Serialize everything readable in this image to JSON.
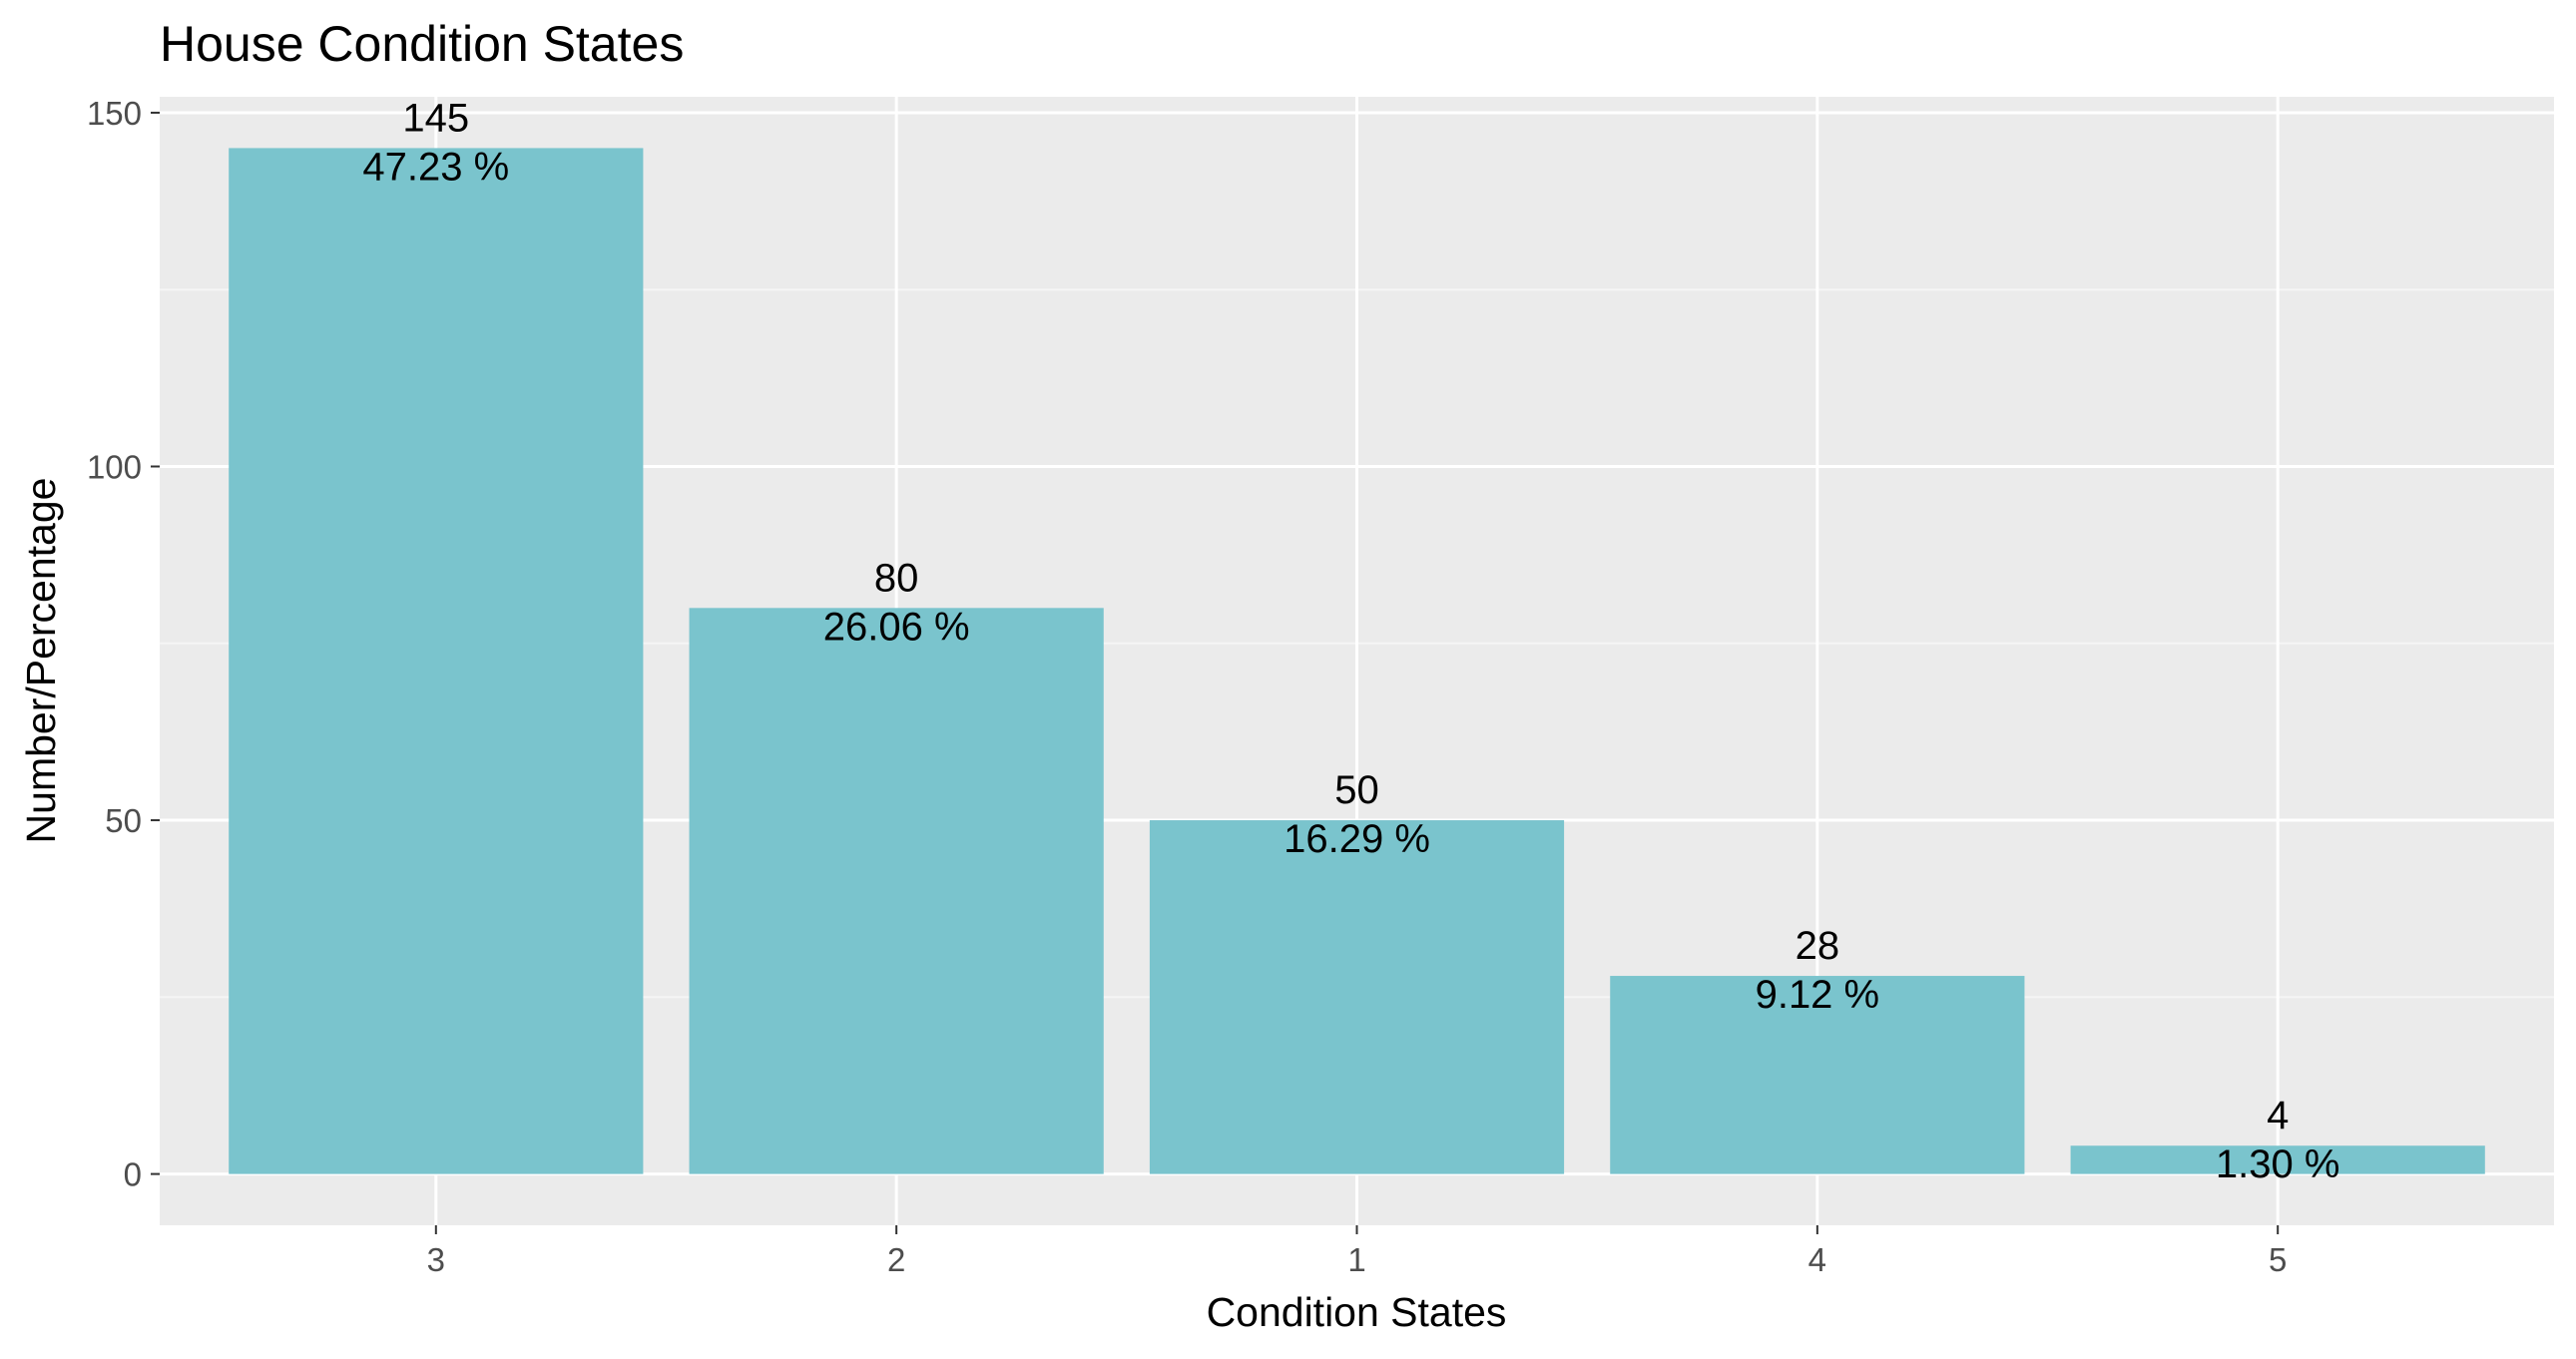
{
  "chart_data": {
    "type": "bar",
    "title": "House Condition States",
    "xlabel": "Condition States",
    "ylabel": "Number/Percentage",
    "categories": [
      "3",
      "2",
      "1",
      "4",
      "5"
    ],
    "values": [
      145,
      80,
      50,
      28,
      4
    ],
    "percent_labels": [
      "47.23 %",
      "26.06 %",
      "16.29 %",
      "9.12 %",
      "1.30 %"
    ],
    "ylim": [
      -7.25,
      152.25
    ],
    "y_ticks": [
      0,
      50,
      100,
      150
    ],
    "y_minor_ticks": [
      25,
      75,
      125
    ],
    "grid": true,
    "colors": {
      "bar": "#7AC4CD",
      "panel_background": "#EBEBEB",
      "grid_major": "#FFFFFF",
      "grid_minor": "#F5F5F5",
      "tick_text": "#4D4D4D",
      "tick_mark": "#333333",
      "text": "#000000"
    }
  }
}
